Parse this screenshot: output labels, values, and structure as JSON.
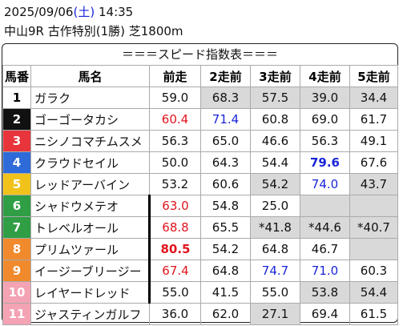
{
  "header": {
    "date": "2025/09/06",
    "open_paren": "(",
    "weekday": "土",
    "close_paren": ")",
    "time": "14:35",
    "race": "中山9R 古作特別(1勝) 芝1800m"
  },
  "banner": "＝＝＝スピード指数表＝＝＝",
  "columns": [
    "馬番",
    "馬名",
    "前走",
    "2走前",
    "3走前",
    "4走前",
    "5走前"
  ],
  "colors": {
    "accent_blue": "#1a24d8",
    "accent_red": "#e1141d",
    "shade": "#d9d9d9"
  },
  "horses": [
    {
      "num": "1",
      "num_bg": "#ffffff",
      "num_fg": "#000000",
      "name": "ガラク",
      "runs": [
        {
          "v": "59.0"
        },
        {
          "v": "68.3",
          "bg": "shade"
        },
        {
          "v": "57.5",
          "bg": "shade"
        },
        {
          "v": "39.0",
          "bg": "shade"
        },
        {
          "v": "34.4",
          "bg": "shade"
        }
      ]
    },
    {
      "num": "2",
      "num_bg": "#111111",
      "num_fg": "#ffffff",
      "name": "ゴーゴータカシ",
      "runs": [
        {
          "v": "60.4",
          "c": "red"
        },
        {
          "v": "71.4",
          "c": "blue"
        },
        {
          "v": "60.8"
        },
        {
          "v": "69.0"
        },
        {
          "v": "61.7"
        }
      ]
    },
    {
      "num": "3",
      "num_bg": "#e8353b",
      "num_fg": "#ffffff",
      "name": "ニシノコマチムスメ",
      "runs": [
        {
          "v": "56.3"
        },
        {
          "v": "65.0"
        },
        {
          "v": "46.6"
        },
        {
          "v": "56.3"
        },
        {
          "v": "49.1"
        }
      ]
    },
    {
      "num": "4",
      "num_bg": "#2f6bd8",
      "num_fg": "#ffffff",
      "name": "クラウドセイル",
      "runs": [
        {
          "v": "50.0"
        },
        {
          "v": "64.3"
        },
        {
          "v": "54.4"
        },
        {
          "v": "79.6",
          "c": "blue",
          "b": true
        },
        {
          "v": "67.6"
        }
      ]
    },
    {
      "num": "5",
      "num_bg": "#f1c21a",
      "num_fg": "#ffffff",
      "name": "レッドアーバイン",
      "runs": [
        {
          "v": "53.2"
        },
        {
          "v": "60.6"
        },
        {
          "v": "54.2",
          "bg": "shade"
        },
        {
          "v": "74.0",
          "c": "blue"
        },
        {
          "v": "43.7",
          "bg": "shade"
        }
      ]
    },
    {
      "num": "6",
      "num_bg": "#2f9e44",
      "num_fg": "#ffffff",
      "name": "シャドウメテオ",
      "runs": [
        {
          "v": "63.0",
          "c": "red",
          "thick": true
        },
        {
          "v": "54.8"
        },
        {
          "v": "25.0"
        },
        {
          "v": "",
          "bg": "shade"
        },
        {
          "v": "",
          "bg": "shade"
        }
      ]
    },
    {
      "num": "7",
      "num_bg": "#2f9e44",
      "num_fg": "#ffffff",
      "name": "トレベルオール",
      "runs": [
        {
          "v": "68.8",
          "c": "red",
          "thick": true
        },
        {
          "v": "65.5"
        },
        {
          "v": "*41.8",
          "bg": "shade"
        },
        {
          "v": "*44.6",
          "bg": "shade"
        },
        {
          "v": "*40.7",
          "bg": "shade"
        }
      ]
    },
    {
      "num": "8",
      "num_bg": "#f08a2c",
      "num_fg": "#ffffff",
      "name": "プリムツァール",
      "runs": [
        {
          "v": "80.5",
          "c": "red",
          "b": true,
          "thick": true
        },
        {
          "v": "54.2"
        },
        {
          "v": "64.8"
        },
        {
          "v": "46.7"
        },
        {
          "v": "",
          "bg": "shade"
        }
      ]
    },
    {
      "num": "9",
      "num_bg": "#f08a2c",
      "num_fg": "#ffffff",
      "name": "イージーブリージー",
      "runs": [
        {
          "v": "67.4",
          "c": "red",
          "thick": true
        },
        {
          "v": "64.8"
        },
        {
          "v": "74.7",
          "c": "blue"
        },
        {
          "v": "71.0",
          "c": "blue"
        },
        {
          "v": "60.3"
        }
      ]
    },
    {
      "num": "10",
      "num_bg": "#f3a3b3",
      "num_fg": "#ffffff",
      "name": "レイヤードレッド",
      "runs": [
        {
          "v": "55.0",
          "thick": true
        },
        {
          "v": "41.5"
        },
        {
          "v": "55.0"
        },
        {
          "v": "53.8",
          "bg": "shade"
        },
        {
          "v": "54.4",
          "bg": "shade"
        }
      ]
    },
    {
      "num": "11",
      "num_bg": "#f3a3b3",
      "num_fg": "#ffffff",
      "name": "ジャスティンガルフ",
      "runs": [
        {
          "v": "36.0"
        },
        {
          "v": "62.0"
        },
        {
          "v": "27.1",
          "bg": "shade"
        },
        {
          "v": "69.4"
        },
        {
          "v": "61.5"
        }
      ]
    }
  ]
}
